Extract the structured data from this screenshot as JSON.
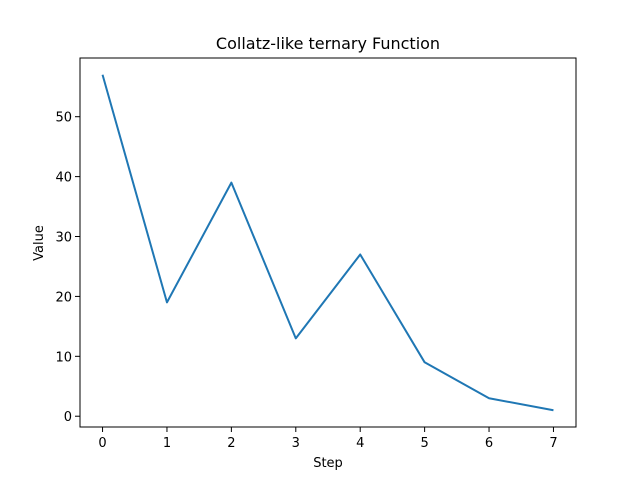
{
  "chart_data": {
    "type": "line",
    "title": "Collatz-like ternary Function",
    "xlabel": "Step",
    "ylabel": "Value",
    "x": [
      0,
      1,
      2,
      3,
      4,
      5,
      6,
      7
    ],
    "series": [
      {
        "values": [
          57,
          19,
          39,
          13,
          27,
          9,
          3,
          1
        ],
        "color": "#1f77b4"
      }
    ],
    "xlim": [
      -0.35,
      7.35
    ],
    "ylim": [
      -1.8,
      59.8
    ],
    "xticks": [
      0,
      1,
      2,
      3,
      4,
      5,
      6,
      7
    ],
    "yticks": [
      0,
      10,
      20,
      30,
      40,
      50
    ],
    "grid": false,
    "legend": "none"
  }
}
